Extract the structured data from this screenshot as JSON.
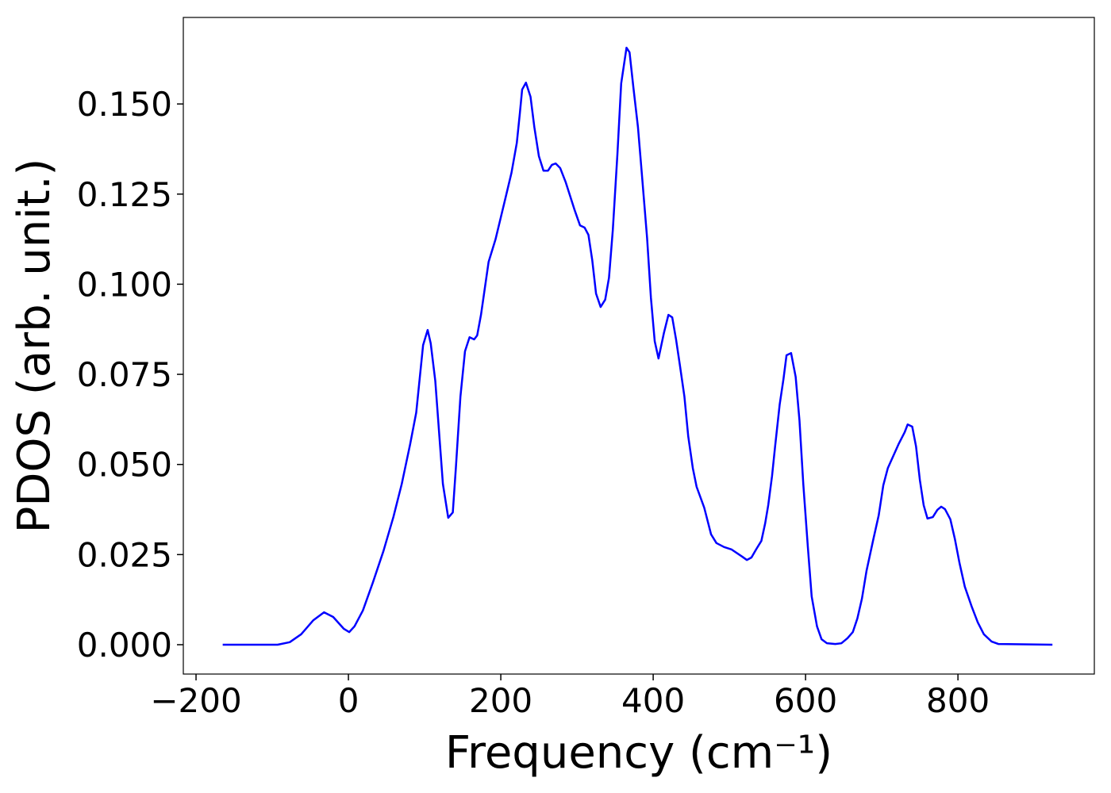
{
  "chart_data": {
    "type": "line",
    "x_label": "Frequency (cm⁻¹)",
    "y_label": "PDOS (arb. unit.)",
    "series": [
      {
        "color": "#0000ff",
        "x": [
          -165,
          -93,
          -77,
          -62,
          -46,
          -32,
          -20,
          -6,
          1,
          8,
          19,
          32,
          46,
          59,
          70,
          81,
          89,
          98,
          104,
          108,
          114,
          124,
          131,
          137,
          141,
          147,
          153,
          159,
          165,
          169,
          174,
          184,
          193,
          206,
          214,
          221,
          225,
          228,
          233,
          239,
          244,
          250,
          256,
          262,
          267,
          272,
          278,
          285,
          297,
          304,
          310,
          315,
          320,
          325,
          331,
          337,
          342,
          347,
          353,
          358,
          365,
          369,
          374,
          380,
          385,
          392,
          397,
          402,
          407,
          414,
          420,
          425,
          430,
          435,
          441,
          446,
          452,
          457,
          467,
          476,
          483,
          493,
          503,
          517,
          523,
          529,
          535,
          542,
          547,
          551,
          556,
          560,
          566,
          571,
          575,
          581,
          587,
          592,
          597,
          603,
          608,
          615,
          621,
          628,
          639,
          647,
          655,
          662,
          668,
          674,
          680,
          689,
          696,
          702,
          708,
          715,
          722,
          730,
          734,
          740,
          745,
          750,
          755,
          760,
          767,
          773,
          778,
          783,
          790,
          796,
          802,
          809,
          818,
          826,
          834,
          844,
          853,
          924
        ],
        "values": [
          0,
          0,
          0.0007,
          0.0029,
          0.0068,
          0.009,
          0.0077,
          0.0044,
          0.0035,
          0.0051,
          0.0095,
          0.0172,
          0.026,
          0.0354,
          0.0446,
          0.0556,
          0.0644,
          0.0831,
          0.0873,
          0.0836,
          0.0732,
          0.0446,
          0.0352,
          0.0367,
          0.049,
          0.0688,
          0.0814,
          0.0853,
          0.0847,
          0.0858,
          0.0915,
          0.1062,
          0.1124,
          0.1238,
          0.1309,
          0.1392,
          0.1474,
          0.154,
          0.1559,
          0.152,
          0.1436,
          0.1355,
          0.1315,
          0.1315,
          0.1331,
          0.1335,
          0.1322,
          0.1284,
          0.1205,
          0.1163,
          0.1157,
          0.1137,
          0.1067,
          0.0974,
          0.0937,
          0.0957,
          0.1018,
          0.115,
          0.1359,
          0.1557,
          0.1656,
          0.1643,
          0.1546,
          0.1436,
          0.1309,
          0.1128,
          0.0963,
          0.0842,
          0.0794,
          0.0864,
          0.0915,
          0.0908,
          0.0847,
          0.0776,
          0.0688,
          0.0578,
          0.049,
          0.0438,
          0.038,
          0.0306,
          0.0282,
          0.0271,
          0.0264,
          0.0244,
          0.0235,
          0.0242,
          0.0264,
          0.0288,
          0.0337,
          0.0387,
          0.0468,
          0.055,
          0.0666,
          0.0737,
          0.0803,
          0.0809,
          0.0743,
          0.0622,
          0.0446,
          0.0271,
          0.0134,
          0.0051,
          0.0015,
          0.0004,
          0.0002,
          0.0004,
          0.0018,
          0.0035,
          0.0073,
          0.0128,
          0.0205,
          0.0293,
          0.0359,
          0.0442,
          0.049,
          0.0523,
          0.0556,
          0.0589,
          0.0611,
          0.0605,
          0.055,
          0.0457,
          0.0387,
          0.035,
          0.0354,
          0.0374,
          0.0383,
          0.0376,
          0.0348,
          0.0293,
          0.0227,
          0.0161,
          0.0106,
          0.0062,
          0.0029,
          0.0009,
          0.0002,
          0
        ]
      }
    ],
    "xlim": [
      -216.7,
      979
    ],
    "ylim": [
      -0.00814,
      0.174
    ],
    "xticks": [
      {
        "value": -200,
        "label": "−200"
      },
      0,
      200,
      400,
      600,
      800
    ],
    "yticks": [
      {
        "value": 0,
        "label": "0.000"
      },
      0.025,
      {
        "value": 0.05,
        "label": "0.050"
      },
      0.075,
      {
        "value": 0.1,
        "label": "0.100"
      },
      0.125,
      {
        "value": 0.15,
        "label": "0.150"
      }
    ]
  }
}
